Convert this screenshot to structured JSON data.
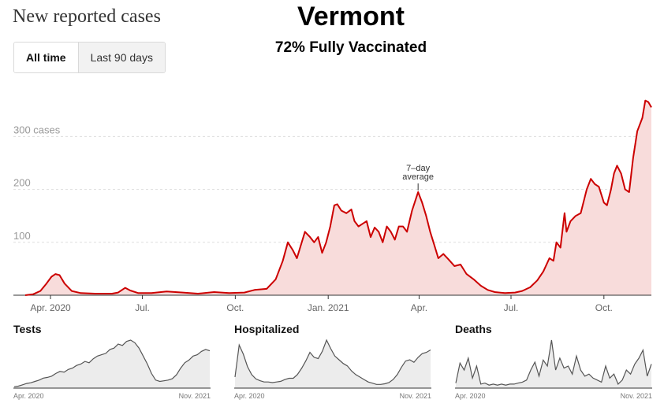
{
  "header": {
    "title": "New reported cases",
    "state": "Vermont",
    "vaccination": "72% Fully Vaccinated"
  },
  "toggle": {
    "options": [
      "All time",
      "Last 90 days"
    ],
    "selected": "All time"
  },
  "colors": {
    "line": "#cc0000",
    "fill": "#f8dcdb",
    "small_line": "#555555",
    "small_fill": "#ececec",
    "grid": "#dddddd"
  },
  "chart_data": [
    {
      "type": "area",
      "title": "",
      "xlabel": "",
      "ylabel": "",
      "x_ticks": [
        "Apr. 2020",
        "Jul.",
        "Oct.",
        "Jan. 2021",
        "Apr.",
        "Jul.",
        "Oct."
      ],
      "y_ticks": [
        "100",
        "200",
        "300 cases"
      ],
      "ylim": [
        0,
        375
      ],
      "grid": true,
      "annotation": {
        "text": [
          "7–day",
          "average"
        ],
        "x": "2021-03-31",
        "y": 195
      },
      "series": [
        {
          "points": [
            [
              "2020-03-07",
              0
            ],
            [
              "2020-03-15",
              2
            ],
            [
              "2020-03-22",
              8
            ],
            [
              "2020-03-28",
              22
            ],
            [
              "2020-04-02",
              35
            ],
            [
              "2020-04-06",
              40
            ],
            [
              "2020-04-10",
              38
            ],
            [
              "2020-04-15",
              22
            ],
            [
              "2020-04-22",
              8
            ],
            [
              "2020-05-01",
              4
            ],
            [
              "2020-05-15",
              3
            ],
            [
              "2020-06-01",
              3
            ],
            [
              "2020-06-07",
              5
            ],
            [
              "2020-06-14",
              14
            ],
            [
              "2020-06-19",
              9
            ],
            [
              "2020-06-27",
              4
            ],
            [
              "2020-07-10",
              4
            ],
            [
              "2020-07-25",
              7
            ],
            [
              "2020-08-10",
              5
            ],
            [
              "2020-08-25",
              3
            ],
            [
              "2020-09-10",
              6
            ],
            [
              "2020-09-25",
              4
            ],
            [
              "2020-10-10",
              5
            ],
            [
              "2020-10-20",
              10
            ],
            [
              "2020-11-01",
              12
            ],
            [
              "2020-11-10",
              30
            ],
            [
              "2020-11-17",
              65
            ],
            [
              "2020-11-22",
              100
            ],
            [
              "2020-11-27",
              85
            ],
            [
              "2020-12-01",
              70
            ],
            [
              "2020-12-05",
              95
            ],
            [
              "2020-12-09",
              120
            ],
            [
              "2020-12-14",
              110
            ],
            [
              "2020-12-18",
              100
            ],
            [
              "2020-12-22",
              110
            ],
            [
              "2020-12-26",
              80
            ],
            [
              "2020-12-30",
              100
            ],
            [
              "2021-01-03",
              130
            ],
            [
              "2021-01-07",
              170
            ],
            [
              "2021-01-10",
              172
            ],
            [
              "2021-01-14",
              160
            ],
            [
              "2021-01-19",
              155
            ],
            [
              "2021-01-24",
              162
            ],
            [
              "2021-01-27",
              140
            ],
            [
              "2021-01-31",
              130
            ],
            [
              "2021-02-04",
              135
            ],
            [
              "2021-02-08",
              140
            ],
            [
              "2021-02-12",
              110
            ],
            [
              "2021-02-16",
              128
            ],
            [
              "2021-02-20",
              120
            ],
            [
              "2021-02-24",
              100
            ],
            [
              "2021-02-28",
              130
            ],
            [
              "2021-03-04",
              120
            ],
            [
              "2021-03-08",
              105
            ],
            [
              "2021-03-12",
              130
            ],
            [
              "2021-03-16",
              130
            ],
            [
              "2021-03-20",
              120
            ],
            [
              "2021-03-25",
              160
            ],
            [
              "2021-03-31",
              195
            ],
            [
              "2021-04-04",
              175
            ],
            [
              "2021-04-08",
              150
            ],
            [
              "2021-04-12",
              120
            ],
            [
              "2021-04-16",
              95
            ],
            [
              "2021-04-20",
              70
            ],
            [
              "2021-04-25",
              78
            ],
            [
              "2021-04-30",
              68
            ],
            [
              "2021-05-06",
              55
            ],
            [
              "2021-05-12",
              58
            ],
            [
              "2021-05-18",
              40
            ],
            [
              "2021-05-25",
              30
            ],
            [
              "2021-06-01",
              18
            ],
            [
              "2021-06-08",
              10
            ],
            [
              "2021-06-15",
              6
            ],
            [
              "2021-06-25",
              4
            ],
            [
              "2021-07-05",
              5
            ],
            [
              "2021-07-12",
              8
            ],
            [
              "2021-07-20",
              15
            ],
            [
              "2021-07-27",
              28
            ],
            [
              "2021-08-02",
              45
            ],
            [
              "2021-08-08",
              70
            ],
            [
              "2021-08-12",
              65
            ],
            [
              "2021-08-15",
              100
            ],
            [
              "2021-08-19",
              90
            ],
            [
              "2021-08-23",
              155
            ],
            [
              "2021-08-25",
              120
            ],
            [
              "2021-08-29",
              140
            ],
            [
              "2021-09-03",
              150
            ],
            [
              "2021-09-08",
              155
            ],
            [
              "2021-09-14",
              200
            ],
            [
              "2021-09-18",
              220
            ],
            [
              "2021-09-22",
              210
            ],
            [
              "2021-09-26",
              205
            ],
            [
              "2021-10-01",
              175
            ],
            [
              "2021-10-04",
              170
            ],
            [
              "2021-10-08",
              200
            ],
            [
              "2021-10-11",
              230
            ],
            [
              "2021-10-14",
              245
            ],
            [
              "2021-10-18",
              230
            ],
            [
              "2021-10-22",
              200
            ],
            [
              "2021-10-26",
              195
            ],
            [
              "2021-10-30",
              260
            ],
            [
              "2021-11-03",
              310
            ],
            [
              "2021-11-08",
              335
            ],
            [
              "2021-11-11",
              368
            ],
            [
              "2021-11-14",
              365
            ],
            [
              "2021-11-17",
              355
            ]
          ]
        }
      ]
    },
    {
      "type": "area",
      "title": "Tests",
      "x_ticks": [
        "Apr. 2020",
        "Nov. 2021"
      ],
      "series": [
        {
          "values": [
            2,
            3,
            5,
            7,
            8,
            10,
            12,
            15,
            16,
            18,
            22,
            25,
            24,
            28,
            30,
            34,
            36,
            40,
            38,
            44,
            48,
            50,
            52,
            58,
            60,
            66,
            64,
            70,
            72,
            68,
            60,
            48,
            36,
            22,
            12,
            10,
            11,
            12,
            14,
            20,
            30,
            38,
            42,
            48,
            50,
            55,
            58,
            56
          ]
        }
      ]
    },
    {
      "type": "area",
      "title": "Hospitalized",
      "x_ticks": [
        "Apr. 2020",
        "Nov. 2021"
      ],
      "series": [
        {
          "values": [
            18,
            70,
            55,
            35,
            22,
            15,
            12,
            10,
            10,
            9,
            10,
            11,
            14,
            16,
            16,
            22,
            32,
            44,
            58,
            50,
            48,
            60,
            78,
            64,
            52,
            46,
            40,
            36,
            28,
            22,
            18,
            14,
            10,
            8,
            6,
            6,
            7,
            9,
            14,
            22,
            34,
            44,
            46,
            42,
            50,
            56,
            58,
            62
          ]
        }
      ]
    },
    {
      "type": "area",
      "title": "Deaths",
      "x_ticks": [
        "Apr. 2020",
        "Nov. 2021"
      ],
      "series": [
        {
          "values": [
            5,
            25,
            18,
            30,
            10,
            22,
            4,
            5,
            3,
            4,
            3,
            4,
            3,
            4,
            4,
            5,
            6,
            8,
            18,
            26,
            12,
            28,
            22,
            48,
            18,
            30,
            20,
            22,
            14,
            32,
            18,
            12,
            14,
            10,
            8,
            6,
            22,
            10,
            14,
            4,
            8,
            18,
            14,
            24,
            30,
            38,
            12,
            24
          ]
        }
      ]
    }
  ]
}
